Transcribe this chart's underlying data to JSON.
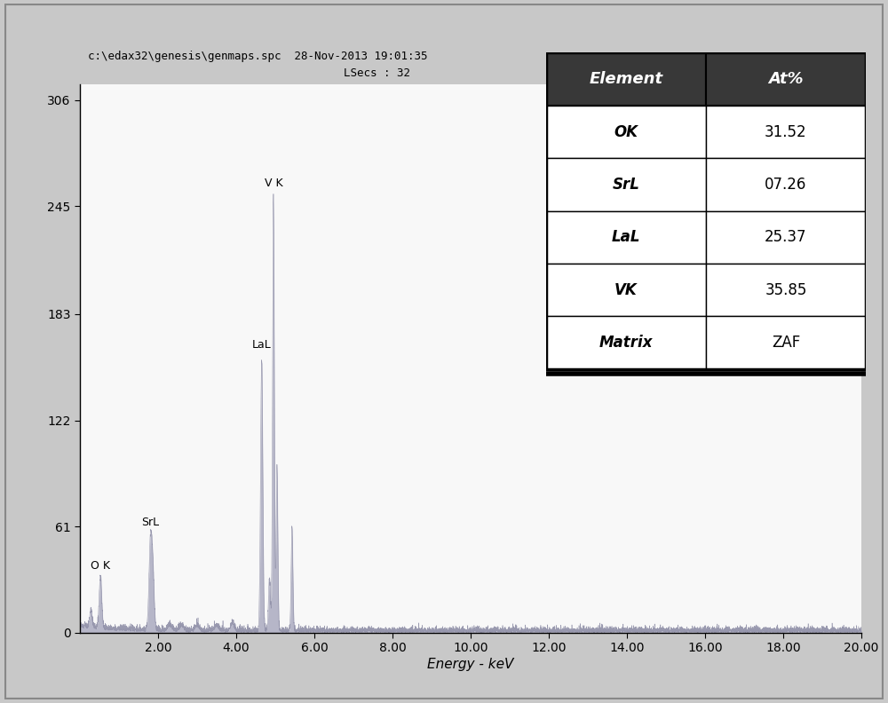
{
  "title_line1": "c:\\edax32\\genesis\\genmaps.spc  28-Nov-2013 19:01:35",
  "title_line2": "LSecs : 32",
  "xlabel": "Energy - keV",
  "yticks": [
    0,
    61,
    122,
    183,
    245,
    306
  ],
  "xticks": [
    2.0,
    4.0,
    6.0,
    8.0,
    10.0,
    12.0,
    14.0,
    16.0,
    18.0,
    20.0
  ],
  "xmax": 20,
  "ymax": 315,
  "outer_bg": "#c8c8c8",
  "inner_bg": "#f0f0f0",
  "plot_bg": "#f8f8f8",
  "spectrum_color": "#9090a8",
  "spectrum_fill": "#a0a0b8",
  "table_header_bg": "#383838",
  "table_header_fg": "#ffffff",
  "table_elements": [
    "OK",
    "SrL",
    "LaL",
    "VK",
    "Matrix"
  ],
  "table_values": [
    "31.52",
    "07.26",
    "25.37",
    "35.85",
    "ZAF"
  ],
  "noise_seed": 42
}
